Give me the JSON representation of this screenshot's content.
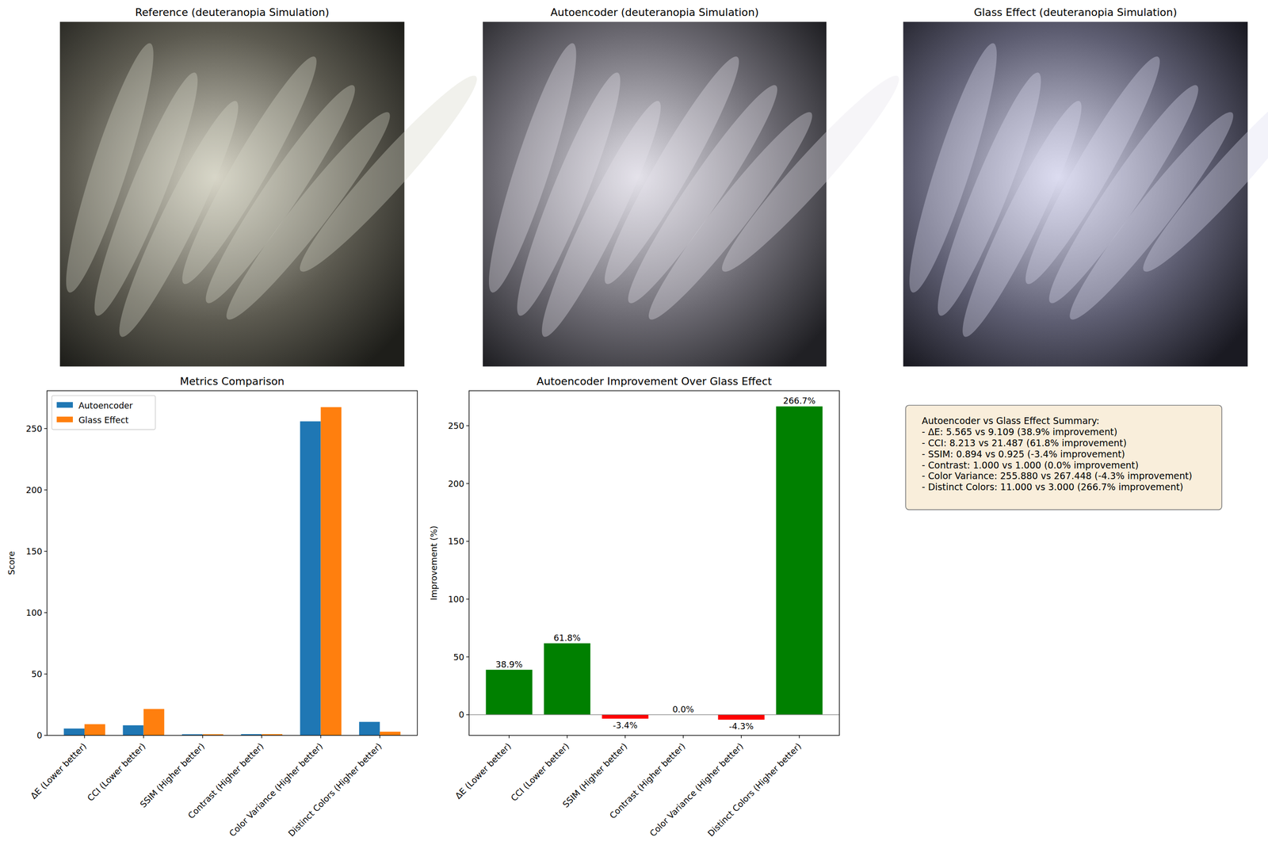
{
  "panels": [
    {
      "title": "Reference (deuteranopia Simulation)"
    },
    {
      "title": "Autoencoder (deuteranopia Simulation)"
    },
    {
      "title": "Glass Effect (deuteranopia Simulation)"
    }
  ],
  "chart_data": [
    {
      "type": "bar",
      "title": "Metrics Comparison",
      "y_label": "Score",
      "categories": [
        "ΔE (Lower better)",
        "CCI (Lower better)",
        "SSIM (Higher better)",
        "Contrast (Higher better)",
        "Color Variance (Higher better)",
        "Distinct Colors (Higher better)"
      ],
      "series": [
        {
          "name": "Autoencoder",
          "color": "#1f77b4",
          "values": [
            5.565,
            8.213,
            0.894,
            1.0,
            255.88,
            11.0
          ]
        },
        {
          "name": "Glass Effect",
          "color": "#ff7f0e",
          "values": [
            9.109,
            21.487,
            0.925,
            1.0,
            267.448,
            3.0
          ]
        }
      ],
      "ylim": [
        0,
        280.82
      ],
      "yticks": [
        0,
        50,
        100,
        150,
        200,
        250
      ],
      "legend": "upper left"
    },
    {
      "type": "bar",
      "title": "Autoencoder Improvement Over Glass Effect",
      "y_label": "Improvement (%)",
      "categories": [
        "ΔE (Lower better)",
        "CCI (Lower better)",
        "SSIM (Higher better)",
        "Contrast (Higher better)",
        "Color Variance (Higher better)",
        "Distinct Colors (Higher better)"
      ],
      "values": [
        38.9,
        61.8,
        -3.4,
        0.0,
        -4.3,
        266.7
      ],
      "value_labels": [
        "38.9%",
        "61.8%",
        "-3.4%",
        "0.0%",
        "-4.3%",
        "266.7%"
      ],
      "colors": [
        "#008000",
        "#008000",
        "#ff0000",
        "#008000",
        "#ff0000",
        "#008000"
      ],
      "data_labels": true,
      "baseline": 0,
      "ylim": [
        -17.85,
        280.25
      ],
      "yticks": [
        0,
        50,
        100,
        150,
        200,
        250
      ]
    }
  ],
  "summary": {
    "lines": [
      "Autoencoder vs Glass Effect Summary:",
      "- ΔE: 5.565 vs 9.109 (38.9% improvement)",
      "- CCI: 8.213 vs 21.487 (61.8% improvement)",
      "- SSIM: 0.894 vs 0.925 (-3.4% improvement)",
      "- Contrast: 1.000 vs 1.000 (0.0% improvement)",
      "- Color Variance: 255.880 vs 267.448 (-4.3% improvement)",
      "- Distinct Colors: 11.000 vs 3.000 (266.7% improvement)"
    ]
  }
}
